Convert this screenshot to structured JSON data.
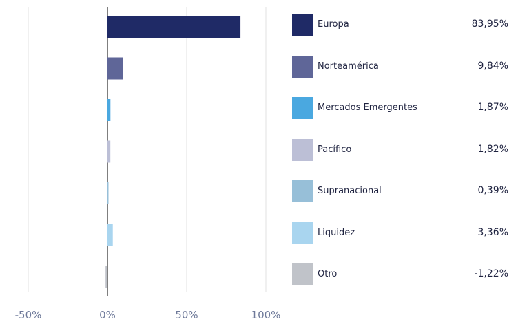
{
  "chart_data": {
    "type": "bar",
    "orientation": "horizontal",
    "categories": [
      "Europa",
      "Norteamérica",
      "Mercados Emergentes",
      "Pacífico",
      "Supranacional",
      "Liquidez",
      "Otro"
    ],
    "values": [
      83.95,
      9.84,
      1.87,
      1.82,
      0.39,
      3.36,
      -1.22
    ],
    "value_labels": [
      "83,95%",
      "9,84%",
      "1,87%",
      "1,82%",
      "0,39%",
      "3,36%",
      "-1,22%"
    ],
    "colors": [
      "#1f2a66",
      "#5f6698",
      "#4aa8e0",
      "#bcbfd6",
      "#97bfd8",
      "#a9d5ef",
      "#c0c3c9"
    ],
    "xlim": [
      -50,
      100
    ],
    "xticks": [
      -50,
      0,
      50,
      100
    ],
    "xtick_labels": [
      "-50%",
      "0%",
      "50%",
      "100%"
    ],
    "grid": true,
    "legend_position": "right"
  }
}
